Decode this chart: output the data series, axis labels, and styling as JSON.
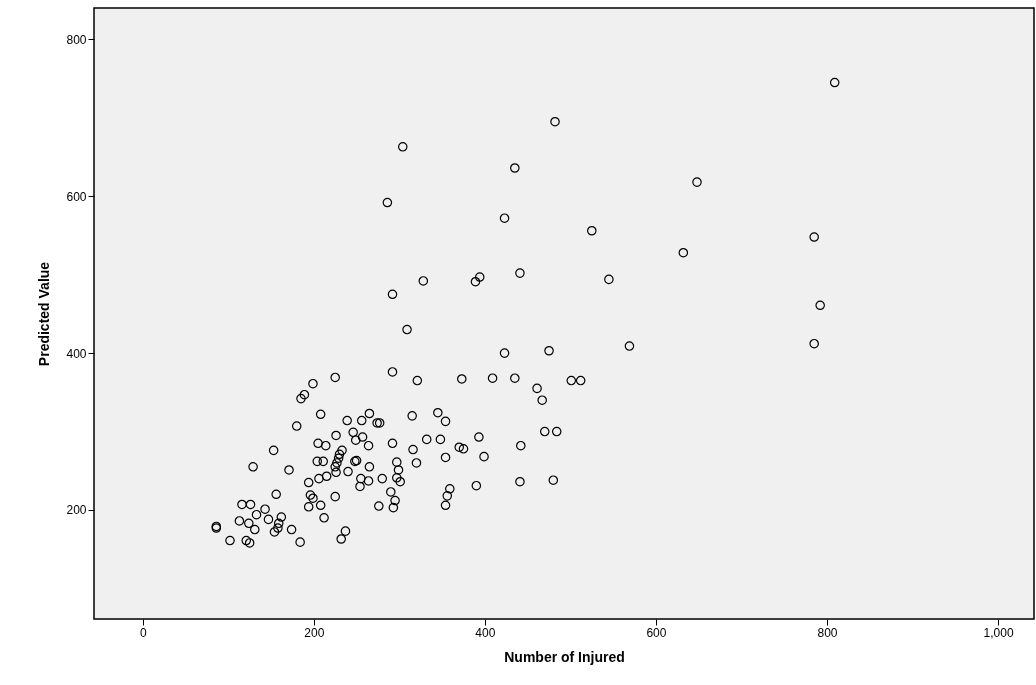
{
  "chart_data": {
    "type": "scatter",
    "xlabel": "Number of Injured",
    "ylabel": "Predicted Value",
    "xlim": [
      -57,
      1042
    ],
    "xticks": [
      0,
      200,
      400,
      600,
      800,
      {
        "value": 1000,
        "label": "1,000"
      }
    ],
    "ylim": [
      61,
      840
    ],
    "yticks": [
      200,
      400,
      600,
      800
    ],
    "grid": false,
    "marker": "circle",
    "series": [
      {
        "color": "#000000",
        "x": [
          482,
          304,
          435,
          286,
          423,
          525,
          441,
          394,
          389,
          328,
          545,
          292,
          309,
          809,
          648,
          785,
          632,
          792,
          569,
          785,
          423,
          475,
          292,
          321,
          373,
          409,
          435,
          461,
          467,
          501,
          512,
          277,
          315,
          345,
          354,
          292,
          316,
          332,
          348,
          370,
          375,
          393,
          320,
          354,
          399,
          442,
          470,
          484,
          297,
          299,
          297,
          301,
          280,
          290,
          295,
          293,
          359,
          356,
          354,
          390,
          441,
          480,
          225,
          199,
          189,
          185,
          208,
          180,
          239,
          256,
          265,
          274,
          226,
          246,
          249,
          257,
          264,
          205,
          214,
          153,
          129,
          171,
          233,
          230,
          229,
          227,
          225,
          204,
          211,
          240,
          248,
          250,
          226,
          265,
          194,
          206,
          215,
          255,
          264,
          254,
          276,
          156,
          196,
          199,
          194,
          208,
          225,
          212,
          116,
          126,
          86,
          143,
          133,
          162,
          113,
          147,
          124,
          159,
          158,
          154,
          174,
          131,
          86,
          102,
          121,
          125,
          184,
          237,
          232
        ],
        "values": [
          695,
          663,
          636,
          592,
          572,
          556,
          502,
          497,
          491,
          492,
          494,
          475,
          430,
          745,
          618,
          548,
          528,
          461,
          409,
          412,
          400,
          403,
          376,
          365,
          367,
          368,
          368,
          355,
          340,
          365,
          365,
          311,
          320,
          324,
          313,
          285,
          277,
          290,
          290,
          280,
          278,
          293,
          260,
          267,
          268,
          282,
          300,
          300,
          261,
          251,
          241,
          236,
          240,
          223,
          212,
          203,
          227,
          218,
          206,
          231,
          236,
          238,
          369,
          361,
          347,
          342,
          322,
          307,
          314,
          314,
          323,
          311,
          295,
          299,
          289,
          293,
          282,
          285,
          282,
          276,
          255,
          251,
          276,
          271,
          266,
          260,
          255,
          262,
          262,
          249,
          262,
          263,
          248,
          255,
          235,
          240,
          243,
          240,
          237,
          230,
          205,
          220,
          219,
          215,
          204,
          206,
          217,
          190,
          207,
          207,
          179,
          201,
          194,
          191,
          186,
          188,
          183,
          183,
          177,
          172,
          175,
          175,
          177,
          161,
          161,
          158,
          159,
          173,
          163
        ]
      }
    ]
  }
}
